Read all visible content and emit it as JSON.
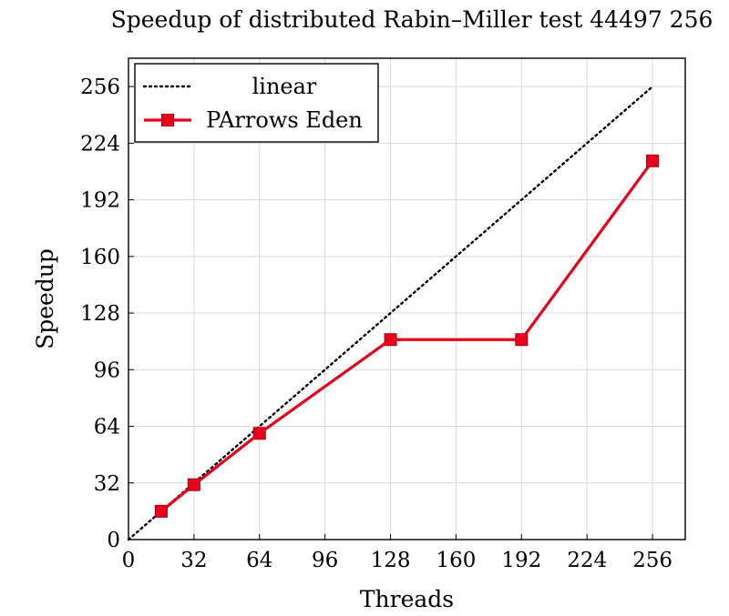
{
  "chart_data": {
    "type": "line",
    "title": "Speedup of distributed Rabin–Miller test 44497 256",
    "xlabel": "Threads",
    "ylabel": "Speedup",
    "xlim": [
      0,
      272
    ],
    "ylim": [
      0,
      272
    ],
    "xticks": [
      0,
      32,
      64,
      96,
      128,
      160,
      192,
      224,
      256
    ],
    "yticks": [
      0,
      32,
      64,
      96,
      128,
      160,
      192,
      224,
      256
    ],
    "grid": true,
    "legend_position": "top-left",
    "series": [
      {
        "name": "linear",
        "style": "dotted",
        "color": "#000000",
        "x": [
          0,
          256
        ],
        "y": [
          0,
          256
        ]
      },
      {
        "name": "PArrows Eden",
        "style": "solid",
        "marker": "square",
        "color": "#e8001c",
        "x": [
          16,
          32,
          64,
          128,
          192,
          256
        ],
        "y": [
          16,
          31,
          60,
          113,
          113,
          214
        ]
      }
    ]
  }
}
